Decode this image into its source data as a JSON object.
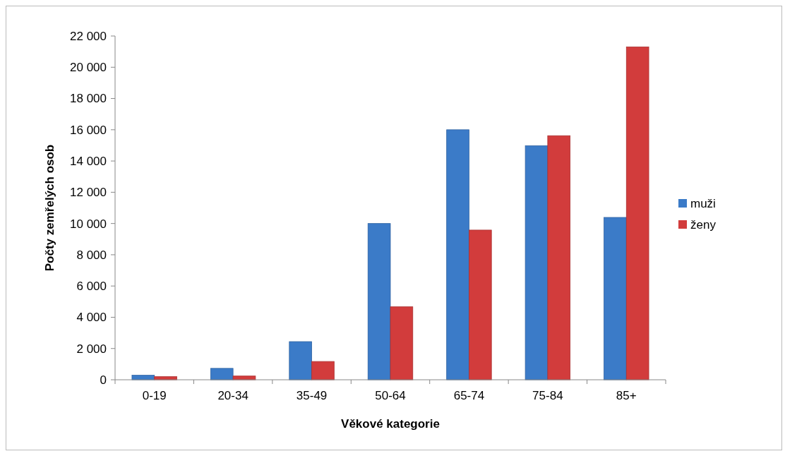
{
  "chart_data": {
    "type": "bar",
    "xlabel": "Věkové kategorie",
    "ylabel": "Počty zemřelých osob",
    "categories": [
      "0-19",
      "20-34",
      "35-49",
      "50-64",
      "65-74",
      "75-84",
      "85+"
    ],
    "series": [
      {
        "name": "muži",
        "color": "#3b7bc8",
        "values": [
          290,
          730,
          2440,
          10000,
          16000,
          14980,
          10390
        ]
      },
      {
        "name": "ženy",
        "color": "#d23c3c",
        "values": [
          200,
          240,
          1170,
          4670,
          9580,
          15620,
          21300
        ]
      }
    ],
    "ylim": [
      0,
      22000
    ],
    "yticks": [
      {
        "value": 0,
        "label": "0"
      },
      {
        "value": 2000,
        "label": "2 000"
      },
      {
        "value": 4000,
        "label": "4 000"
      },
      {
        "value": 6000,
        "label": "6 000"
      },
      {
        "value": 8000,
        "label": "8 000"
      },
      {
        "value": 10000,
        "label": "10 000"
      },
      {
        "value": 12000,
        "label": "12 000"
      },
      {
        "value": 14000,
        "label": "14 000"
      },
      {
        "value": 16000,
        "label": "16 000"
      },
      {
        "value": 18000,
        "label": "18 000"
      },
      {
        "value": 20000,
        "label": "20 000"
      },
      {
        "value": 22000,
        "label": "22 000"
      }
    ],
    "grid": false,
    "legend": "right"
  }
}
